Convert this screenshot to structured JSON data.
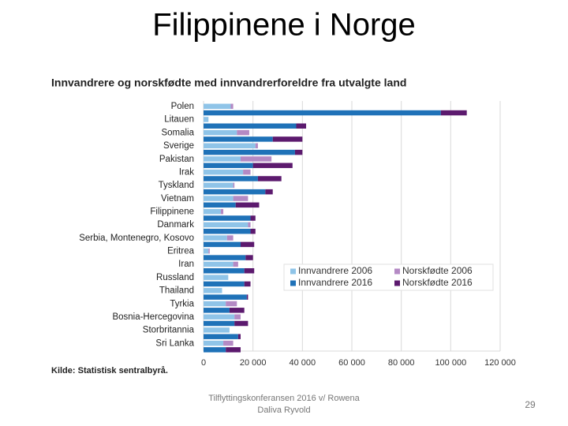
{
  "slide": {
    "title": "Filippinene i Norge",
    "footer": "Tilflyttingskonferansen 2016 v/ Rowena Daliva Ryvold",
    "page_number": 29
  },
  "chart_data": {
    "type": "stacked-bar-horizontal-paired",
    "title": "Innvandrere og norskfødte med innvandrerforeldre fra utvalgte land",
    "source": "Kilde: Statistisk sentralbyrå.",
    "categories": [
      "Polen",
      "Litauen",
      "Somalia",
      "Sverige",
      "Pakistan",
      "Irak",
      "Tyskland",
      "Vietnam",
      "Filippinene",
      "Danmark",
      "Serbia, Montenegro, Kosovo",
      "Eritrea",
      "Iran",
      "Russland",
      "Thailand",
      "Tyrkia",
      "Bosnia-Hercegovina",
      "Storbritannia",
      "Sri Lanka"
    ],
    "series": [
      {
        "name": "Innvandrere 2006",
        "color": "#8fc4e8",
        "values": [
          11000,
          2000,
          13500,
          21000,
          15000,
          16000,
          12000,
          12000,
          7000,
          18000,
          9500,
          2000,
          12000,
          10000,
          7500,
          9000,
          12500,
          10500,
          8000
        ]
      },
      {
        "name": "Norskfødte 2006",
        "color": "#b48ac4",
        "values": [
          1000,
          0,
          5000,
          1000,
          12500,
          3000,
          500,
          6000,
          1000,
          1000,
          2500,
          500,
          2000,
          0,
          0,
          4500,
          2500,
          0,
          4000
        ]
      },
      {
        "name": "Innvandrere 2016",
        "color": "#1f72b8",
        "values": [
          96000,
          37500,
          28000,
          37000,
          20000,
          22000,
          25000,
          13000,
          19000,
          19000,
          15000,
          17000,
          16500,
          16500,
          17500,
          10500,
          12500,
          14000,
          9000
        ]
      },
      {
        "name": "Norskfødte 2016",
        "color": "#5c1a6e",
        "values": [
          10500,
          4000,
          12000,
          3000,
          16000,
          9500,
          3000,
          9500,
          2000,
          2000,
          5500,
          3000,
          4000,
          2500,
          500,
          6000,
          5500,
          1000,
          6000
        ]
      }
    ],
    "xlim": [
      0,
      120000
    ],
    "xticks": [
      0,
      {
        "value": 20000,
        "label": "20 000"
      },
      {
        "value": 40000,
        "label": "40 000"
      },
      {
        "value": 60000,
        "label": "60 000"
      },
      {
        "value": 80000,
        "label": "80 000"
      },
      {
        "value": 100000,
        "label": "100 000"
      },
      {
        "value": 120000,
        "label": "120 000"
      }
    ],
    "grid": true
  }
}
